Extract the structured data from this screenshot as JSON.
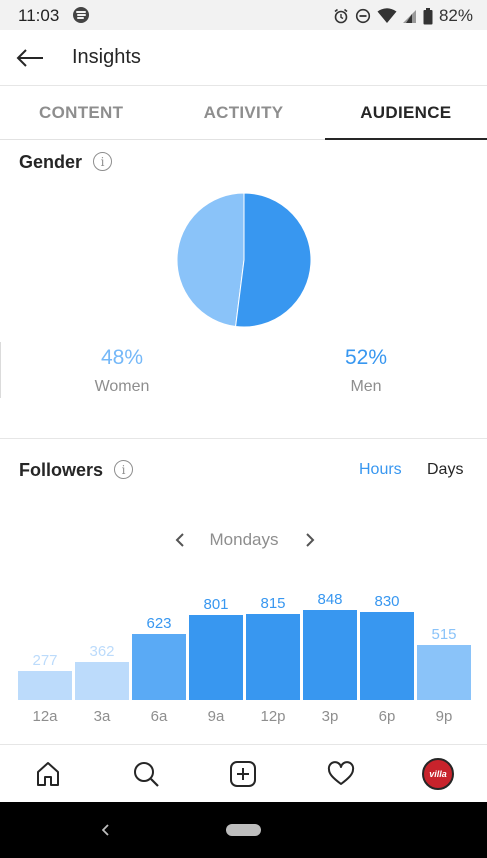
{
  "status_bar": {
    "time": "11:03",
    "battery": "82%",
    "icons": [
      "spotify-icon",
      "alarm-icon",
      "dnd-icon",
      "wifi-icon",
      "signal-icon",
      "battery-icon"
    ]
  },
  "header": {
    "title": "Insights",
    "back_icon": "arrow-left-icon"
  },
  "tabs": [
    {
      "label": "CONTENT",
      "active": false
    },
    {
      "label": "ACTIVITY",
      "active": false
    },
    {
      "label": "AUDIENCE",
      "active": true
    }
  ],
  "gender": {
    "title": "Gender",
    "women": {
      "pct": "48%",
      "label": "Women",
      "color": "#8ac3f9"
    },
    "men": {
      "pct": "52%",
      "label": "Men",
      "color": "#3897f0"
    }
  },
  "followers": {
    "title": "Followers",
    "toggle": {
      "hours": "Hours",
      "days": "Days",
      "selected": "Hours"
    },
    "day": "Mondays"
  },
  "chart_data": {
    "type": "bar",
    "categories": [
      "12a",
      "3a",
      "6a",
      "9a",
      "12p",
      "3p",
      "6p",
      "9p"
    ],
    "values": [
      277,
      362,
      623,
      801,
      815,
      848,
      830,
      515
    ],
    "colors": [
      "#bcdbfb",
      "#bcdbfb",
      "#5aaaf5",
      "#3897f0",
      "#3897f0",
      "#3897f0",
      "#3897f0",
      "#8ac3f9"
    ],
    "label_colors": [
      "#bcdbfb",
      "#bcdbfb",
      "#3897f0",
      "#3897f0",
      "#3897f0",
      "#3897f0",
      "#3897f0",
      "#8ac3f9"
    ],
    "ylim": [
      0,
      900
    ],
    "grid": false
  },
  "bottom_nav": {
    "items": [
      "home-icon",
      "search-icon",
      "add-post-icon",
      "heart-icon"
    ],
    "avatar_text": "villa"
  },
  "colors": {
    "accent": "#3897f0",
    "muted": "#8e8e8e",
    "text": "#262626"
  }
}
